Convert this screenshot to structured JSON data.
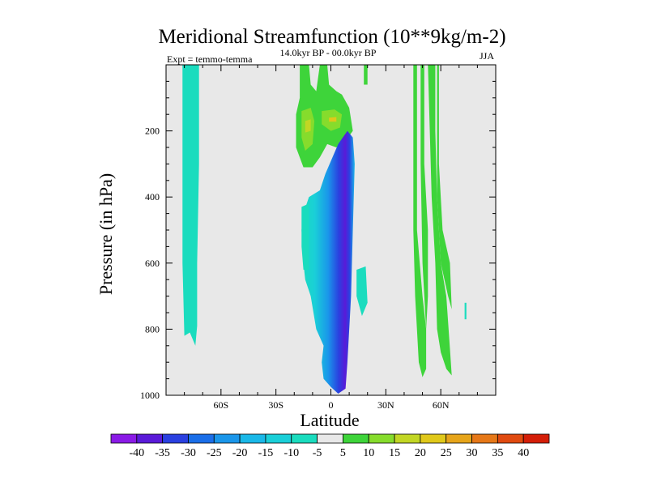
{
  "chart_data": {
    "type": "contour",
    "title": "Meridional Streamfunction (10**9kg/m-2)",
    "subtitle_center": "14.0kyr BP - 00.0kyr BP",
    "subtitle_left": "Expt = temmo-temma",
    "subtitle_right": "JJA",
    "xlabel": "Latitude",
    "ylabel": "Pressure (in hPa)",
    "xlim": [
      -90,
      90
    ],
    "ylim": [
      0,
      1000
    ],
    "y_inverted": true,
    "x_ticks": [
      {
        "value": -60,
        "label": "60S"
      },
      {
        "value": -30,
        "label": "30S"
      },
      {
        "value": 0,
        "label": "0"
      },
      {
        "value": 30,
        "label": "30N"
      },
      {
        "value": 60,
        "label": "60N"
      }
    ],
    "y_ticks": [
      {
        "value": 200,
        "label": "200"
      },
      {
        "value": 400,
        "label": "400"
      },
      {
        "value": 600,
        "label": "600"
      },
      {
        "value": 800,
        "label": "800"
      },
      {
        "value": 1000,
        "label": "1000"
      }
    ],
    "colorbar": {
      "levels": [
        "-40",
        "-35",
        "-30",
        "-25",
        "-20",
        "-15",
        "-10",
        "-5",
        "5",
        "10",
        "15",
        "20",
        "25",
        "30",
        "35",
        "40"
      ],
      "colors": [
        "#8a1ae6",
        "#5a1ad8",
        "#2a40e0",
        "#1a6ee8",
        "#1a96ea",
        "#1ab8e8",
        "#1acfd8",
        "#1adcbe",
        "#e8e8e8",
        "#3ed43a",
        "#86dc2c",
        "#c2d624",
        "#e0c81a",
        "#e6a41a",
        "#e67818",
        "#e04a10",
        "#d41e08"
      ]
    },
    "zero_band_color": "#e8e8e8",
    "regions": [
      {
        "name": "sh-high-lat-cell",
        "level": -5,
        "lat_range": [
          -80,
          -70
        ],
        "p_range": [
          0,
          850
        ],
        "description": "narrow negative column"
      },
      {
        "name": "upper-tropical-positive",
        "level": 5,
        "lat_range": [
          -17,
          12
        ],
        "p_range": [
          0,
          300
        ],
        "description": "positive upper cell"
      },
      {
        "name": "upper-tropical-core",
        "level": 10,
        "lat_range": [
          -15,
          5
        ],
        "p_range": [
          150,
          270
        ],
        "description": "positive core"
      },
      {
        "name": "tropical-negative-cell",
        "level": -35,
        "lat_range": [
          -17,
          13
        ],
        "p_range": [
          200,
          990
        ],
        "description": "main negative cell, min near 5N 500-600hPa"
      },
      {
        "name": "mid-lat-positive-columns",
        "level": 5,
        "lat_range": [
          45,
          67
        ],
        "p_range": [
          0,
          950
        ],
        "description": "positive columns"
      }
    ]
  }
}
